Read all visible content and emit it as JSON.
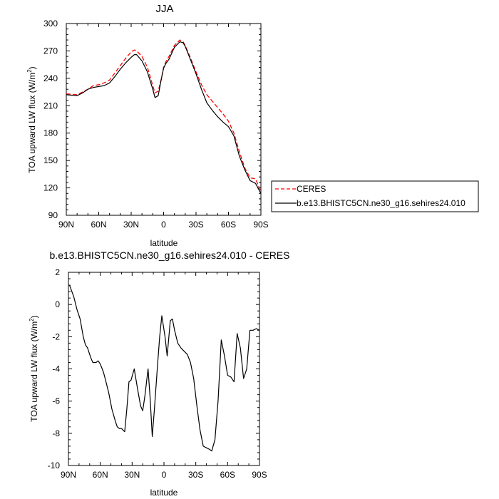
{
  "chart_data": [
    {
      "type": "line",
      "title": "JJA",
      "xlabel": "latitude",
      "ylabel": "TOA upward LW flux (W/m",
      "ylabel_sup": "2",
      "ylabel_tail": ")",
      "xlim": [
        -90,
        90
      ],
      "ylim": [
        90,
        300
      ],
      "xticks": [
        -90,
        -60,
        -30,
        0,
        30,
        60,
        90
      ],
      "xticklabels": [
        "90N",
        "60N",
        "30N",
        "0",
        "30S",
        "60S",
        "90S"
      ],
      "yticks": [
        90,
        120,
        150,
        180,
        210,
        240,
        270,
        300
      ],
      "yticklabels": [
        "90",
        "120",
        "150",
        "180",
        "210",
        "240",
        "270",
        "300"
      ],
      "legend_position": "outside-right",
      "series": [
        {
          "name": "CERES",
          "color": "#ff0000",
          "style": "dashed",
          "x": [
            -90,
            -80,
            -75,
            -70,
            -65,
            -60,
            -55,
            -50,
            -45,
            -40,
            -35,
            -30,
            -27,
            -25,
            -20,
            -15,
            -10,
            -8,
            -5,
            -2,
            0,
            2,
            5,
            10,
            15,
            18,
            20,
            25,
            30,
            35,
            40,
            45,
            50,
            55,
            60,
            65,
            70,
            75,
            80,
            85,
            90
          ],
          "y": [
            223,
            222,
            225,
            228,
            232,
            233,
            235,
            238,
            246,
            254,
            262,
            269,
            271,
            270,
            264,
            252,
            232,
            224,
            226,
            240,
            252,
            258,
            264,
            276,
            282,
            280,
            276,
            262,
            247,
            233,
            222,
            215,
            208,
            201,
            193,
            180,
            160,
            142,
            131,
            130,
            116
          ]
        },
        {
          "name": "b.e13.BHISTC5CN.ne30_g16.sehires24.010",
          "color": "#000000",
          "style": "solid",
          "x": [
            -90,
            -80,
            -75,
            -70,
            -65,
            -60,
            -55,
            -50,
            -45,
            -40,
            -35,
            -30,
            -27,
            -25,
            -20,
            -15,
            -10,
            -8,
            -5,
            -2,
            0,
            2,
            5,
            10,
            15,
            18,
            20,
            25,
            30,
            35,
            40,
            45,
            50,
            55,
            60,
            65,
            70,
            75,
            80,
            85,
            90
          ],
          "y": [
            222,
            221,
            224,
            228,
            230,
            231,
            232,
            235,
            242,
            250,
            257,
            263,
            266,
            266,
            259,
            247,
            228,
            219,
            221,
            240,
            251,
            256,
            261,
            274,
            280,
            279,
            275,
            260,
            245,
            228,
            213,
            205,
            198,
            192,
            187,
            177,
            155,
            140,
            128,
            125,
            114
          ]
        }
      ]
    },
    {
      "type": "line",
      "title": "b.e13.BHISTC5CN.ne30_g16.sehires24.010 - CERES",
      "xlabel": "latitude",
      "ylabel": "TOA upward LW flux (W/m",
      "ylabel_sup": "2",
      "ylabel_tail": ")",
      "xlim": [
        -90,
        90
      ],
      "ylim": [
        -10,
        2
      ],
      "xticks": [
        -90,
        -60,
        -30,
        0,
        30,
        60,
        90
      ],
      "xticklabels": [
        "90N",
        "60N",
        "30N",
        "0",
        "30S",
        "60S",
        "90S"
      ],
      "yticks": [
        -10,
        -8,
        -6,
        -4,
        -2,
        0,
        2
      ],
      "yticklabels": [
        "-10",
        "-8",
        "-6",
        "-4",
        "-2",
        "0",
        "2"
      ],
      "series": [
        {
          "color": "#000000",
          "style": "solid",
          "x": [
            -89,
            -85,
            -82,
            -79,
            -76,
            -74,
            -72,
            -69,
            -67,
            -64,
            -62,
            -60,
            -57,
            -55,
            -52,
            -49,
            -46,
            -44,
            -42,
            -40,
            -37,
            -35,
            -33,
            -31,
            -28,
            -25,
            -22,
            -20,
            -18,
            -15,
            -13,
            -11,
            -9,
            -6,
            -4,
            -2,
            1,
            3,
            6,
            8,
            10,
            13,
            16,
            19,
            22,
            25,
            28,
            31,
            34,
            37,
            40,
            43,
            45,
            48,
            51,
            54,
            57,
            60,
            63,
            66,
            69,
            72,
            75,
            78,
            81,
            84,
            87,
            90
          ],
          "y": [
            1.2,
            0.5,
            -0.3,
            -0.9,
            -2.0,
            -2.5,
            -2.7,
            -3.3,
            -3.6,
            -3.6,
            -3.5,
            -3.7,
            -4.2,
            -4.7,
            -5.5,
            -6.5,
            -7.2,
            -7.6,
            -7.7,
            -7.7,
            -7.9,
            -6.5,
            -4.8,
            -4.7,
            -4.0,
            -5.2,
            -6.3,
            -6.6,
            -5.7,
            -4.0,
            -5.8,
            -8.2,
            -6.5,
            -3.7,
            -2.0,
            -0.7,
            -2.0,
            -3.2,
            -1.0,
            -0.9,
            -1.6,
            -2.4,
            -2.7,
            -2.9,
            -3.1,
            -3.6,
            -4.6,
            -6.3,
            -7.8,
            -8.8,
            -8.9,
            -9.0,
            -9.1,
            -8.4,
            -6.0,
            -2.2,
            -3.2,
            -4.4,
            -4.5,
            -4.8,
            -1.8,
            -2.7,
            -4.6,
            -4.0,
            -1.6,
            -1.6,
            -1.5,
            -1.6
          ]
        }
      ]
    }
  ]
}
